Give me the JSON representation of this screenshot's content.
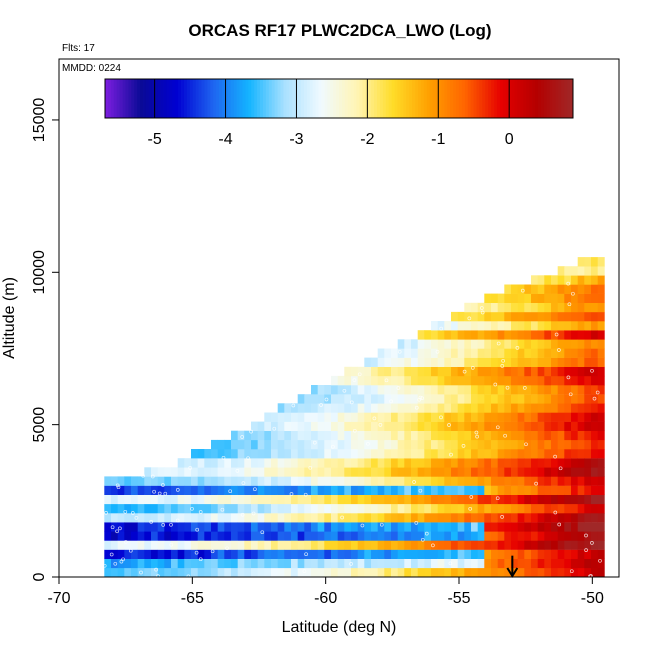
{
  "chart_data": {
    "type": "heatmap",
    "title": "ORCAS RF17 PLWC2DCA_LWO (Log)",
    "flights_note": "Flts: 17",
    "date_note": "MMDD: 0224",
    "xlabel": "Latitude (deg N)",
    "ylabel": "Altitude (m)",
    "xlim": [
      -70,
      -49
    ],
    "ylim": [
      0,
      17000
    ],
    "x_ticks": [
      -70,
      -65,
      -60,
      -55,
      -50
    ],
    "y_ticks": [
      0,
      5000,
      10000,
      15000
    ],
    "colorbar": {
      "range": [
        -5.7,
        0.9
      ],
      "ticks": [
        -5,
        -4,
        -3,
        -2,
        -1,
        0
      ],
      "colors": [
        "#7d1ee0",
        "#0a0a96",
        "#0000d2",
        "#1e64f0",
        "#14b4ff",
        "#aae1ff",
        "#f0faff",
        "#fff5b4",
        "#ffdc28",
        "#ffa000",
        "#ff6400",
        "#e60000",
        "#b40000",
        "#a02828"
      ]
    },
    "field": {
      "lat_range": [
        -68.3,
        -49.6
      ],
      "lat_step": 0.25,
      "alt_step": 300,
      "top_altitude_edge": [
        [
          -67.5,
          3200
        ],
        [
          -66.0,
          3500
        ],
        [
          -63.0,
          4800
        ],
        [
          -60.0,
          6300
        ],
        [
          -57.0,
          7700
        ],
        [
          -54.5,
          8900
        ],
        [
          -51.5,
          9900
        ],
        [
          -50.3,
          10300
        ]
      ],
      "core_latitude": -50.3,
      "core_log_value": 0.6,
      "edge_log_value": -3.2,
      "layer_anomalies": [
        {
          "alt": 1500,
          "value": -4.6
        },
        {
          "alt": 1200,
          "value": -4.8
        },
        {
          "alt": 600,
          "value": -4.7
        },
        {
          "alt": 300,
          "value": -3.8
        },
        {
          "alt": 2700,
          "value": -4.5
        }
      ]
    },
    "annotation": {
      "type": "arrow",
      "latitude": -53,
      "from_altitude": 700,
      "to_altitude": 0
    }
  }
}
